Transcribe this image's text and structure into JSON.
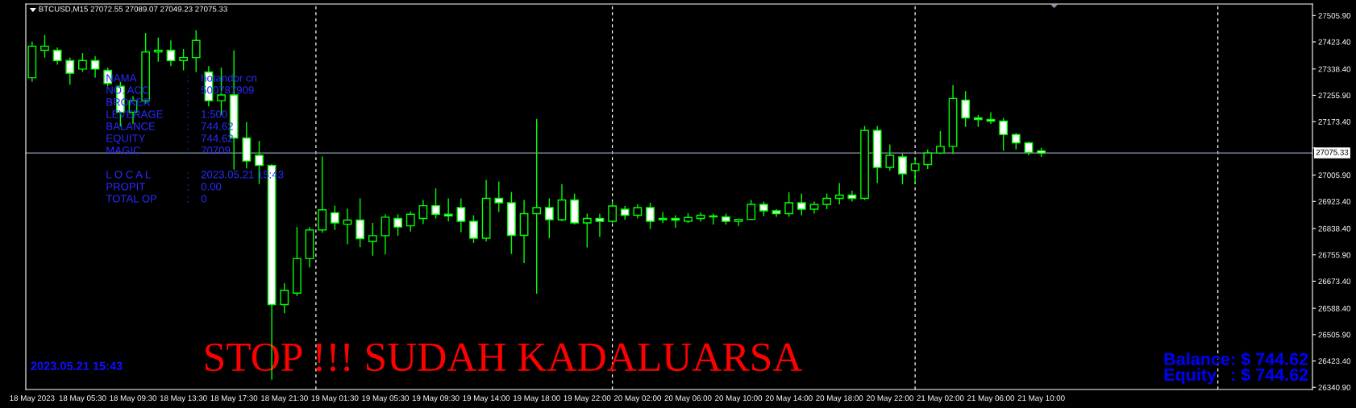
{
  "chart_data": {
    "type": "candlestick",
    "title": "BTCUSD,M15 27072.55 27089.07 27049.23 27075.33",
    "color": "#00ff00",
    "categories": [
      "18 May 2023",
      null,
      null,
      null,
      "18 May 05:30",
      null,
      null,
      null,
      "18 May 09:30",
      null,
      null,
      null,
      "18 May 13:30",
      null,
      null,
      null,
      "18 May 17:30",
      null,
      null,
      null,
      "18 May 21:30",
      null,
      null,
      null,
      "19 May 01:30",
      null,
      null,
      null,
      "19 May 05:30",
      null,
      null,
      null,
      "19 May 09:30",
      null,
      null,
      null,
      "19 May 14:00",
      null,
      null,
      null,
      "19 May 18:00",
      null,
      null,
      null,
      "19 May 22:00",
      null,
      null,
      null,
      "20 May 02:00",
      null,
      null,
      null,
      "20 May 06:00",
      null,
      null,
      null,
      "20 May 10:00",
      null,
      null,
      null,
      "20 May 14:00",
      null,
      null,
      null,
      "20 May 18:00",
      null,
      null,
      null,
      "20 May 22:00",
      null,
      null,
      null,
      "21 May 02:00",
      null,
      null,
      null,
      "21 May 06:00",
      null,
      null,
      null,
      "21 May 10:00",
      null,
      null,
      null,
      null,
      null,
      null,
      null,
      null,
      null,
      null,
      null,
      null,
      null,
      null,
      null,
      null,
      null,
      null,
      null,
      null,
      null
    ],
    "ohlc": [
      [
        27311,
        27424,
        27298,
        27410
      ],
      [
        27397,
        27445,
        27374,
        27410
      ],
      [
        27397,
        27406,
        27352,
        27365
      ],
      [
        27365,
        27374,
        27289,
        27325
      ],
      [
        27338,
        27388,
        27329,
        27365
      ],
      [
        27365,
        27379,
        27311,
        27338
      ],
      [
        27334,
        27343,
        27284,
        27293
      ],
      [
        27284,
        27298,
        27158,
        27203
      ],
      [
        27203,
        27253,
        27167,
        27239
      ],
      [
        27239,
        27451,
        27230,
        27392
      ],
      [
        27392,
        27437,
        27361,
        27397
      ],
      [
        27397,
        27428,
        27347,
        27365
      ],
      [
        27365,
        27401,
        27334,
        27374
      ],
      [
        27374,
        27460,
        27329,
        27428
      ],
      [
        27329,
        27347,
        27221,
        27239
      ],
      [
        27239,
        27343,
        27194,
        27257
      ],
      [
        27257,
        27397,
        27023,
        27122
      ],
      [
        27122,
        27172,
        27027,
        27050
      ],
      [
        27068,
        27113,
        26978,
        27036
      ],
      [
        27036,
        27041,
        26365,
        26600
      ],
      [
        26600,
        26667,
        26573,
        26645
      ],
      [
        26636,
        26843,
        26627,
        26744
      ],
      [
        26744,
        26843,
        26717,
        26834
      ],
      [
        26834,
        27064,
        26825,
        26897
      ],
      [
        26888,
        26910,
        26834,
        26856
      ],
      [
        26852,
        26901,
        26789,
        26865
      ],
      [
        26865,
        26933,
        26780,
        26807
      ],
      [
        26798,
        26856,
        26753,
        26816
      ],
      [
        26816,
        26883,
        26757,
        26874
      ],
      [
        26870,
        26883,
        26816,
        26843
      ],
      [
        26847,
        26892,
        26829,
        26883
      ],
      [
        26870,
        26928,
        26852,
        26910
      ],
      [
        26910,
        26964,
        26870,
        26883
      ],
      [
        26883,
        26933,
        26861,
        26878
      ],
      [
        26904,
        26933,
        26827,
        26861
      ],
      [
        26861,
        26880,
        26793,
        26808
      ],
      [
        26808,
        26991,
        26798,
        26933
      ],
      [
        26933,
        26986,
        26890,
        26919
      ],
      [
        26919,
        26953,
        26759,
        26817
      ],
      [
        26817,
        26928,
        26730,
        26885
      ],
      [
        26885,
        27182,
        26634,
        26904
      ],
      [
        26904,
        26933,
        26808,
        26866
      ],
      [
        26866,
        26977,
        26861,
        26928
      ],
      [
        26928,
        26948,
        26851,
        26856
      ],
      [
        26856,
        26885,
        26779,
        26870
      ],
      [
        26870,
        26885,
        26812,
        26861
      ],
      [
        26861,
        26923,
        26856,
        26909
      ],
      [
        26899,
        26909,
        26866,
        26880
      ],
      [
        26880,
        26914,
        26870,
        26904
      ],
      [
        26904,
        26919,
        26837,
        26861
      ],
      [
        26866,
        26890,
        26856,
        26870
      ],
      [
        26870,
        26880,
        26841,
        26865
      ],
      [
        26861,
        26887,
        26856,
        26873
      ],
      [
        26870,
        26889,
        26860,
        26880
      ],
      [
        26875,
        26885,
        26851,
        26878
      ],
      [
        26875,
        26885,
        26851,
        26861
      ],
      [
        26861,
        26870,
        26846,
        26867
      ],
      [
        26867,
        26928,
        26865,
        26914
      ],
      [
        26914,
        26923,
        26877,
        26894
      ],
      [
        26894,
        26899,
        26875,
        26885
      ],
      [
        26885,
        26952,
        26875,
        26919
      ],
      [
        26919,
        26948,
        26880,
        26899
      ],
      [
        26899,
        26923,
        26885,
        26914
      ],
      [
        26914,
        26948,
        26899,
        26933
      ],
      [
        26933,
        26981,
        26914,
        26943
      ],
      [
        26943,
        26957,
        26923,
        26933
      ],
      [
        26933,
        27160,
        26928,
        27146
      ],
      [
        27146,
        27160,
        26981,
        27030
      ],
      [
        27030,
        27102,
        27020,
        27068
      ],
      [
        27063,
        27073,
        26977,
        27010
      ],
      [
        27021,
        27058,
        26979,
        27041
      ],
      [
        27039,
        27086,
        27025,
        27075
      ],
      [
        27075,
        27144,
        27072,
        27096
      ],
      [
        27096,
        27288,
        27072,
        27246
      ],
      [
        27241,
        27269,
        27157,
        27185
      ],
      [
        27185,
        27194,
        27157,
        27180
      ],
      [
        27180,
        27203,
        27166,
        27175
      ],
      [
        27175,
        27185,
        27082,
        27133
      ],
      [
        27133,
        27138,
        27086,
        27107
      ],
      [
        27107,
        27110,
        27068,
        27077
      ],
      [
        27082,
        27091,
        27063,
        27075
      ],
      null,
      null,
      null,
      null,
      null,
      null,
      null,
      null,
      null,
      null,
      null,
      null,
      null,
      null,
      null,
      null,
      null,
      null,
      null,
      null,
      null
    ],
    "ylim": [
      26334,
      27542
    ],
    "yticks": [
      {
        "value": 27505.9,
        "label": "27505.90"
      },
      {
        "value": 27423.4,
        "label": "27423.40"
      },
      {
        "value": 27338.4,
        "label": "27338.40"
      },
      {
        "value": 27255.9,
        "label": "27255.90"
      },
      {
        "value": 27173.4,
        "label": "27173.40"
      },
      {
        "value": 27090.9,
        "label": null
      },
      {
        "value": 27005.9,
        "label": "27005.90"
      },
      {
        "value": 26923.4,
        "label": "26923.40"
      },
      {
        "value": 26838.4,
        "label": "26838.40"
      },
      {
        "value": 26755.9,
        "label": "26755.90"
      },
      {
        "value": 26673.4,
        "label": "26673.40"
      },
      {
        "value": 26588.4,
        "label": "26588.40"
      },
      {
        "value": 26505.9,
        "label": "26505.90"
      },
      {
        "value": 26423.4,
        "label": "26423.40"
      },
      {
        "value": 26340.9,
        "label": "26340.90"
      }
    ],
    "ref_lines": [
      {
        "axis": "y",
        "value": 27075.33,
        "label": "27075.33",
        "color": "#8a9aaa",
        "line_style": "solid"
      }
    ],
    "annotations": [
      "NAMA",
      ":",
      "hotandor cn",
      "NO. ACC",
      ":",
      "500787909",
      "BROKER",
      ":",
      "LEVERAGE",
      ":",
      "1:500",
      "BALANCE",
      ":",
      "744.62",
      "EQUITY",
      ":",
      "744.62",
      "MAGIC",
      ":",
      "70709",
      "L O C A L",
      ":",
      "2023.05.21 15:43",
      "PROPIT",
      ":",
      "0.00",
      "TOTAL OP",
      ":",
      "0",
      "STOP !!! SUDAH KADALUARSA",
      "2023.05.21 15:43",
      "Balance",
      ": $ 744.62",
      "Equity",
      ": $ 744.62"
    ]
  }
}
